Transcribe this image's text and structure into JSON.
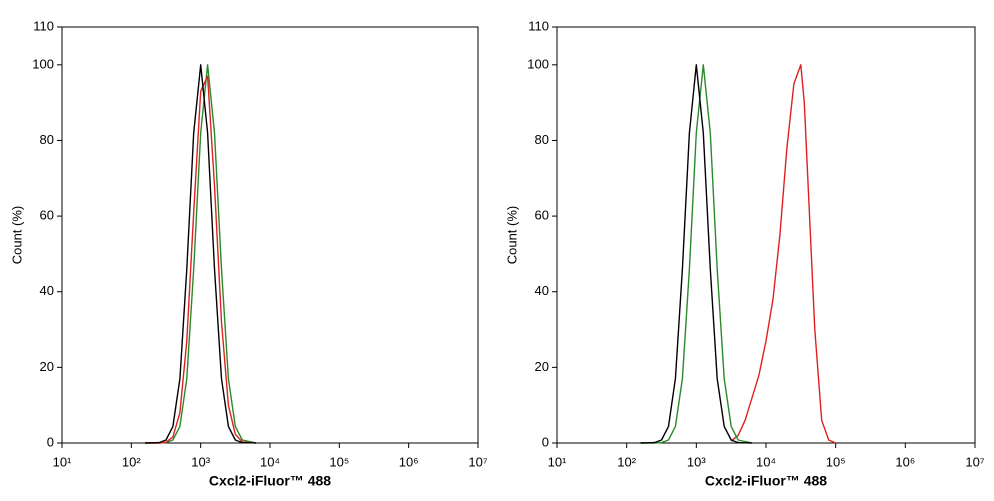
{
  "chart_data": [
    {
      "type": "line",
      "xlabel": "Cxcl2-iFluor™ 488",
      "ylabel": "Count  (%)",
      "xscale": "log",
      "xlim": [
        10,
        10000000
      ],
      "ylim": [
        0,
        110
      ],
      "xticks": [
        {
          "value": 10,
          "label": "10¹"
        },
        {
          "value": 100,
          "label": "10²"
        },
        {
          "value": 1000,
          "label": "10³"
        },
        {
          "value": 10000,
          "label": "10⁴"
        },
        {
          "value": 100000,
          "label": "10⁵"
        },
        {
          "value": 1000000,
          "label": "10⁶"
        },
        {
          "value": 10000000,
          "label": "10⁷"
        }
      ],
      "yticks": [
        0,
        20,
        40,
        60,
        80,
        100,
        110
      ],
      "series": [
        {
          "color": "#2a8a2a",
          "x": [
            158,
            251,
            316,
            398,
            501,
            631,
            794,
            1000,
            1259,
            1585,
            1995,
            2512,
            3162,
            3981,
            6310
          ],
          "values": [
            0,
            0,
            0.1,
            0.8,
            4.4,
            17,
            46,
            82,
            100,
            82,
            46,
            17,
            4.4,
            0.8,
            0
          ]
        },
        {
          "color": "#e02020",
          "x": [
            158,
            251,
            316,
            398,
            501,
            631,
            794,
            1000,
            1259,
            1585,
            1995,
            2512,
            3162,
            3981,
            6310
          ],
          "values": [
            0,
            0,
            0.2,
            1.6,
            8,
            27,
            61,
            93,
            97,
            68,
            32,
            10,
            2.3,
            0.3,
            0
          ]
        },
        {
          "color": "#000000",
          "x": [
            158,
            251,
            316,
            398,
            501,
            631,
            794,
            1000,
            1259,
            1585,
            1995,
            2512,
            3162,
            3981,
            6310
          ],
          "values": [
            0,
            0.1,
            0.8,
            4.4,
            17,
            46,
            82,
            100,
            82,
            46,
            17,
            4.4,
            0.8,
            0.1,
            0
          ]
        }
      ]
    },
    {
      "type": "line",
      "xlabel": "Cxcl2-iFluor™ 488",
      "ylabel": "Count  (%)",
      "xscale": "log",
      "xlim": [
        10,
        10000000
      ],
      "ylim": [
        0,
        110
      ],
      "xticks": [
        {
          "value": 10,
          "label": "10¹"
        },
        {
          "value": 100,
          "label": "10²"
        },
        {
          "value": 1000,
          "label": "10³"
        },
        {
          "value": 10000,
          "label": "10⁴"
        },
        {
          "value": 100000,
          "label": "10⁵"
        },
        {
          "value": 1000000,
          "label": "10⁶"
        },
        {
          "value": 10000000,
          "label": "10⁷"
        }
      ],
      "yticks": [
        0,
        20,
        40,
        60,
        80,
        100,
        110
      ],
      "series": [
        {
          "color": "#e02020",
          "x": [
            3162,
            3981,
            5012,
            6310,
            7943,
            10000,
            12589,
            15849,
            19953,
            25119,
            31623,
            35481,
            39811,
            50119,
            63096,
            79433,
            100000
          ],
          "values": [
            0.5,
            2,
            6,
            12,
            18,
            27,
            38,
            55,
            78,
            95,
            100,
            90,
            70,
            30,
            6,
            0.8,
            0
          ]
        },
        {
          "color": "#2a8a2a",
          "x": [
            158,
            251,
            316,
            398,
            501,
            631,
            794,
            1000,
            1259,
            1585,
            1995,
            2512,
            3162,
            3981,
            6310
          ],
          "values": [
            0,
            0,
            0.1,
            0.8,
            4.4,
            17,
            46,
            82,
            100,
            82,
            46,
            17,
            4.4,
            0.8,
            0
          ]
        },
        {
          "color": "#000000",
          "x": [
            158,
            251,
            316,
            398,
            501,
            631,
            794,
            1000,
            1259,
            1585,
            1995,
            2512,
            3162,
            3981,
            6310
          ],
          "values": [
            0,
            0.1,
            0.8,
            4.4,
            17,
            46,
            82,
            100,
            82,
            46,
            17,
            4.4,
            0.8,
            0.1,
            0
          ]
        }
      ]
    }
  ]
}
